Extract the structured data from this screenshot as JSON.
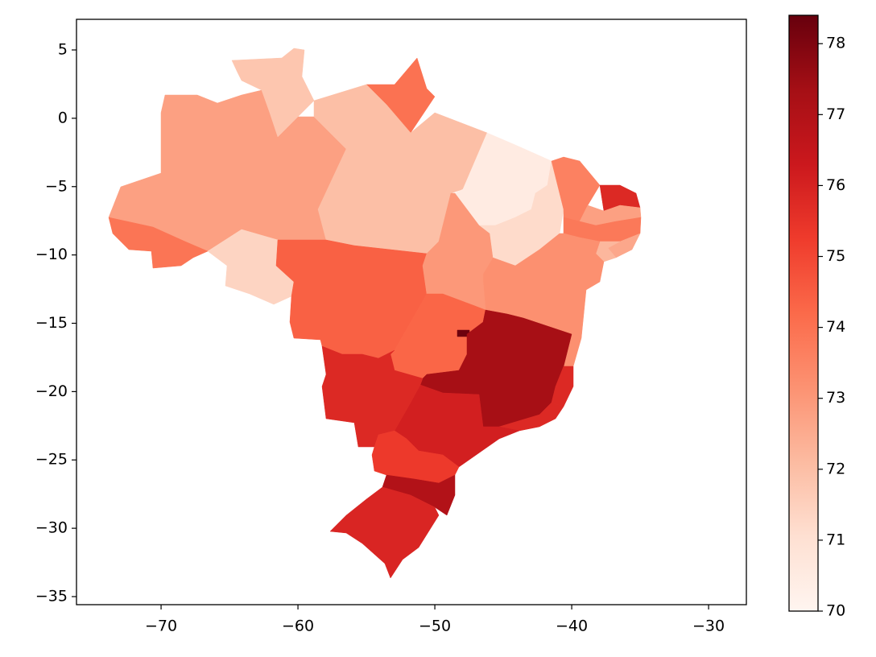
{
  "chart_data": {
    "type": "choropleth",
    "cmap": "Reds",
    "values": [
      72.8,
      71.8,
      74.0,
      72.0,
      70.5,
      71.2,
      73.6,
      75.8,
      72.8,
      73.8,
      72.6,
      72.2,
      73.2,
      73.9,
      71.4,
      74.4,
      73.0,
      74.3,
      78.3,
      77.3,
      75.8,
      75.8,
      76.1,
      75.8,
      75.3,
      77.0,
      75.9
    ],
    "xlim": [
      -76.18,
      -27.24
    ],
    "ylim": [
      -35.59,
      7.24
    ],
    "xticks": [
      {
        "value": -70,
        "label": "−70"
      },
      {
        "value": -60,
        "label": "−60"
      },
      {
        "value": -50,
        "label": "−50"
      },
      {
        "value": -40,
        "label": "−40"
      },
      {
        "value": -30,
        "label": "−30"
      }
    ],
    "yticks": [
      5,
      0,
      {
        "value": -5,
        "label": "−5"
      },
      {
        "value": -10,
        "label": "−10"
      },
      {
        "value": -15,
        "label": "−15"
      },
      {
        "value": -20,
        "label": "−20"
      },
      {
        "value": -25,
        "label": "−25"
      },
      {
        "value": -30,
        "label": "−30"
      },
      {
        "value": -35,
        "label": "−35"
      }
    ],
    "clim": [
      70,
      78.4
    ],
    "cticks": [
      70,
      71,
      72,
      73,
      74,
      75,
      76,
      77,
      78
    ]
  }
}
